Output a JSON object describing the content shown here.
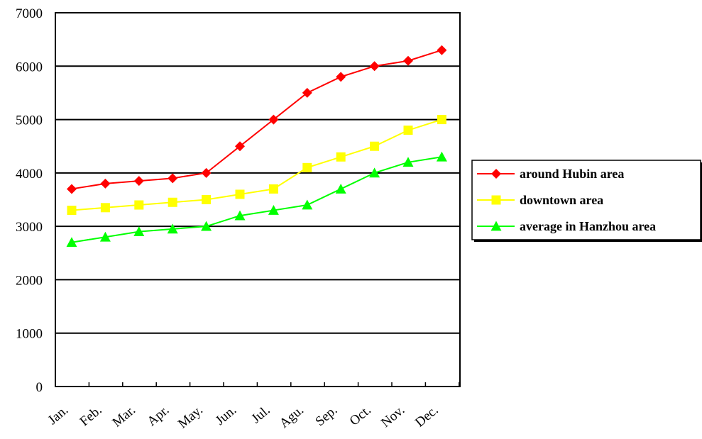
{
  "chart_data": {
    "type": "line",
    "title": "",
    "xlabel": "",
    "ylabel": "",
    "categories": [
      "Jan.",
      "Feb.",
      "Mar.",
      "Apr.",
      "May.",
      "Jun.",
      "Jul.",
      "Agu.",
      "Sep.",
      "Oct.",
      "Nov.",
      "Dec."
    ],
    "ylim": [
      0,
      7000
    ],
    "yticks": [
      0,
      1000,
      2000,
      3000,
      4000,
      5000,
      6000,
      7000
    ],
    "grid": "horizontal",
    "legend_position": "right",
    "series": [
      {
        "name": "around Hubin area",
        "color": "#ff0000",
        "marker": "diamond",
        "values": [
          3700,
          3800,
          3850,
          3900,
          4000,
          4500,
          5000,
          5500,
          5800,
          6000,
          6100,
          6300
        ]
      },
      {
        "name": "downtown area",
        "color": "#ffff00",
        "marker": "square",
        "values": [
          3300,
          3350,
          3400,
          3450,
          3500,
          3600,
          3700,
          4100,
          4300,
          4500,
          4800,
          5000
        ]
      },
      {
        "name": "average in Hanzhou area",
        "color": "#00ff00",
        "marker": "triangle",
        "values": [
          2700,
          2800,
          2900,
          2950,
          3000,
          3200,
          3300,
          3400,
          3700,
          4000,
          4200,
          4300
        ]
      }
    ]
  }
}
